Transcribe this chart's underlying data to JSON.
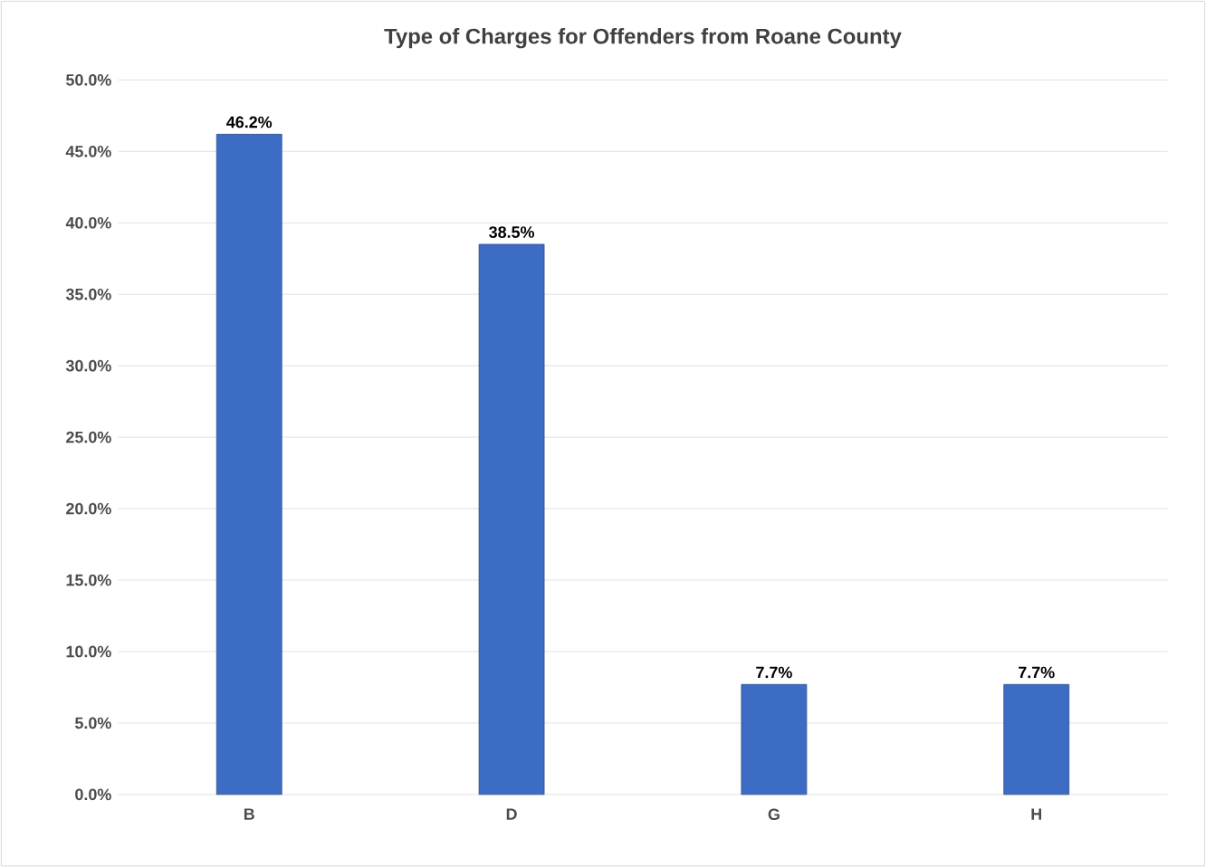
{
  "chart_data": {
    "type": "bar",
    "title": "Type of Charges for Offenders from Roane County",
    "categories": [
      "B",
      "D",
      "G",
      "H"
    ],
    "values": [
      46.2,
      38.5,
      7.7,
      7.7
    ],
    "value_labels": [
      "46.2%",
      "38.5%",
      "7.7%",
      "7.7%"
    ],
    "color": "#3d6cc4",
    "ylim": [
      0,
      50
    ],
    "yticks": [
      {
        "value": 0,
        "label": "0.0%"
      },
      {
        "value": 5,
        "label": "5.0%"
      },
      {
        "value": 10,
        "label": "10.0%"
      },
      {
        "value": 15,
        "label": "15.0%"
      },
      {
        "value": 20,
        "label": "20.0%"
      },
      {
        "value": 25,
        "label": "25.0%"
      },
      {
        "value": 30,
        "label": "30.0%"
      },
      {
        "value": 35,
        "label": "35.0%"
      },
      {
        "value": 40,
        "label": "40.0%"
      },
      {
        "value": 45,
        "label": "45.0%"
      },
      {
        "value": 50,
        "label": "50.0%"
      }
    ],
    "grid": "y"
  }
}
